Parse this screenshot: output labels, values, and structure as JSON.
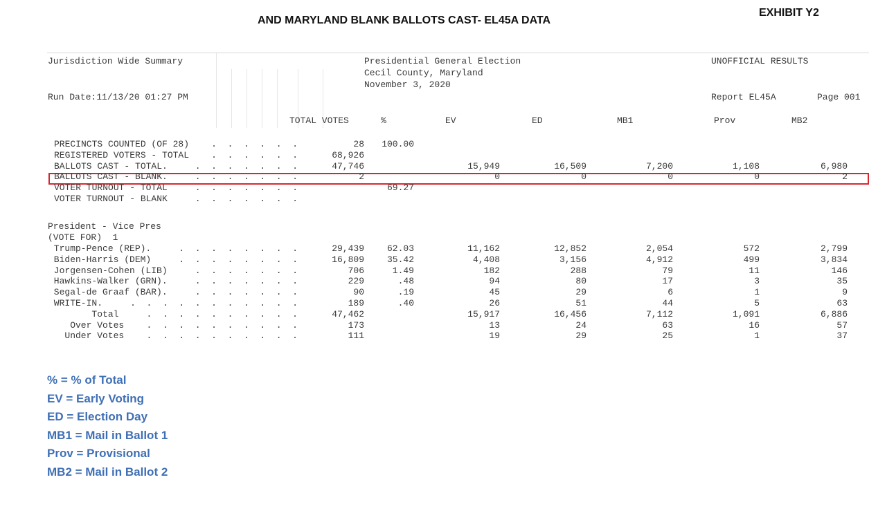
{
  "header": {
    "title": "AND MARYLAND BLANK BALLOTS CAST- EL45A DATA",
    "exhibit": "EXHIBIT Y2"
  },
  "report": {
    "left_title": "Jurisdiction Wide Summary",
    "election_title": "Presidential General Election",
    "county": "Cecil County, Maryland",
    "date": "November 3, 2020",
    "status": "UNOFFICIAL RESULTS",
    "run_date": "Run Date:11/13/20 01:27 PM",
    "report_id": "Report EL45A",
    "page": "Page 001"
  },
  "columns": [
    "TOTAL VOTES",
    "%",
    "EV",
    "ED",
    "MB1",
    "Prov",
    "MB2"
  ],
  "summary_rows": [
    {
      "label": "PRECINCTS COUNTED (OF 28)",
      "dots": " .  .  .  .  .  .",
      "total": "28",
      "pct": "100.00",
      "ev": "",
      "ed": "",
      "mb1": "",
      "prov": "",
      "mb2": ""
    },
    {
      "label": "REGISTERED VOTERS - TOTAL",
      "dots": " .  .  .  .  .  .",
      "total": "68,926",
      "pct": "",
      "ev": "",
      "ed": "",
      "mb1": "",
      "prov": "",
      "mb2": ""
    },
    {
      "label": "BALLOTS CAST - TOTAL.",
      "dots": "  .  .  .  .  .  .  .",
      "total": "47,746",
      "pct": "",
      "ev": "15,949",
      "ed": "16,509",
      "mb1": "7,200",
      "prov": "1,108",
      "mb2": "6,980"
    },
    {
      "label": "BALLOTS CAST - BLANK.",
      "dots": "  .  .  .  .  .  .  .",
      "total": "2",
      "pct": "",
      "ev": "0",
      "ed": "0",
      "mb1": "0",
      "prov": "0",
      "mb2": "2"
    },
    {
      "label": "VOTER TURNOUT - TOTAL",
      "dots": "  .  .  .  .  .  .  .",
      "total": "",
      "pct": "69.27",
      "ev": "",
      "ed": "",
      "mb1": "",
      "prov": "",
      "mb2": ""
    },
    {
      "label": "VOTER TURNOUT - BLANK",
      "dots": "  .  .  .  .  .  .  .",
      "total": "",
      "pct": "",
      "ev": "",
      "ed": "",
      "mb1": "",
      "prov": "",
      "mb2": ""
    }
  ],
  "contest": {
    "title": "President - Vice Pres",
    "vote_for": "(VOTE FOR)  1"
  },
  "candidate_rows": [
    {
      "label": " Trump-Pence (REP).",
      "dots": "  .  .  .  .  .  .  .  .",
      "total": "29,439",
      "pct": "62.03",
      "ev": "11,162",
      "ed": "12,852",
      "mb1": "2,054",
      "prov": "572",
      "mb2": "2,799"
    },
    {
      "label": " Biden-Harris (DEM)",
      "dots": "  .  .  .  .  .  .  .  .",
      "total": "16,809",
      "pct": "35.42",
      "ev": "4,408",
      "ed": "3,156",
      "mb1": "4,912",
      "prov": "499",
      "mb2": "3,834"
    },
    {
      "label": " Jorgensen-Cohen (LIB)",
      "dots": "  .  .  .  .  .  .  .",
      "total": "706",
      "pct": "1.49",
      "ev": "182",
      "ed": "288",
      "mb1": "79",
      "prov": "11",
      "mb2": "146"
    },
    {
      "label": " Hawkins-Walker (GRN).",
      "dots": "  .  .  .  .  .  .  .",
      "total": "229",
      "pct": ".48",
      "ev": "94",
      "ed": "80",
      "mb1": "17",
      "prov": "3",
      "mb2": "35"
    },
    {
      "label": " Segal-de Graaf (BAR).",
      "dots": "  .  .  .  .  .  .  .",
      "total": "90",
      "pct": ".19",
      "ev": "45",
      "ed": "29",
      "mb1": "6",
      "prov": "1",
      "mb2": "9"
    },
    {
      "label": " WRITE-IN.",
      "dots": "  .  .  .  .  .  .  .  .  .  .  .",
      "total": "189",
      "pct": ".40",
      "ev": "26",
      "ed": "51",
      "mb1": "44",
      "prov": "5",
      "mb2": "63"
    },
    {
      "label": "        Total",
      "dots": " .  .  .  .  .  .  .  .  .  .",
      "total": "47,462",
      "pct": "",
      "ev": "15,917",
      "ed": "16,456",
      "mb1": "7,112",
      "prov": "1,091",
      "mb2": "6,886"
    },
    {
      "label": "    Over Votes",
      "dots": " .  .  .  .  .  .  .  .  .  .",
      "total": "173",
      "pct": "",
      "ev": "13",
      "ed": "24",
      "mb1": "63",
      "prov": "16",
      "mb2": "57"
    },
    {
      "label": "   Under Votes",
      "dots": " .  .  .  .  .  .  .  .  .  .",
      "total": "111",
      "pct": "",
      "ev": "19",
      "ed": "29",
      "mb1": "25",
      "prov": "1",
      "mb2": "37"
    }
  ],
  "legend": [
    "% = % of Total",
    "EV = Early Voting",
    "ED = Election Day",
    "MB1 = Mail in Ballot 1",
    "Prov = Provisional",
    "MB2 = Mail in Ballot 2"
  ],
  "colors": {
    "highlight_border": "#d9262c",
    "legend_text": "#3f6fb5"
  }
}
